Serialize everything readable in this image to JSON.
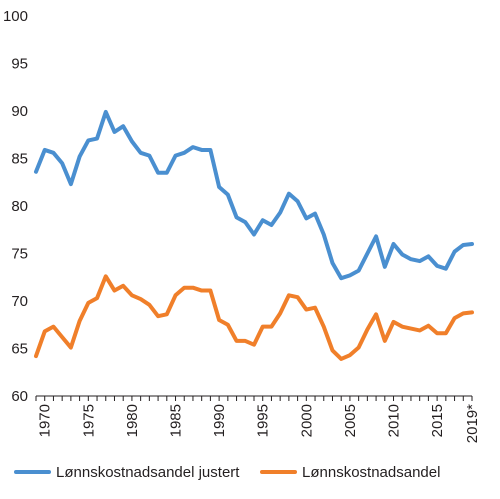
{
  "chart_data": {
    "type": "line",
    "title": "",
    "xlabel": "",
    "ylabel": "",
    "ylim": [
      60,
      100
    ],
    "yticks": [
      60,
      65,
      70,
      75,
      80,
      85,
      90,
      95,
      100
    ],
    "xticks": [
      {
        "x": 1970,
        "label": "1970"
      },
      {
        "x": 1975,
        "label": "1975"
      },
      {
        "x": 1980,
        "label": "1980"
      },
      {
        "x": 1985,
        "label": "1985"
      },
      {
        "x": 1990,
        "label": "1990"
      },
      {
        "x": 1995,
        "label": "1995"
      },
      {
        "x": 2000,
        "label": "2000"
      },
      {
        "x": 2005,
        "label": "2005"
      },
      {
        "x": 2010,
        "label": "2010"
      },
      {
        "x": 2015,
        "label": "2015"
      },
      {
        "x": 2019,
        "label": "2019*"
      }
    ],
    "x": [
      1969,
      1970,
      1971,
      1972,
      1973,
      1974,
      1975,
      1976,
      1977,
      1978,
      1979,
      1980,
      1981,
      1982,
      1983,
      1984,
      1985,
      1986,
      1987,
      1988,
      1989,
      1990,
      1991,
      1992,
      1993,
      1994,
      1995,
      1996,
      1997,
      1998,
      1999,
      2000,
      2001,
      2002,
      2003,
      2004,
      2005,
      2006,
      2007,
      2008,
      2009,
      2010,
      2011,
      2012,
      2013,
      2014,
      2015,
      2016,
      2017,
      2018,
      2019
    ],
    "series": [
      {
        "name": "Lønnskostnadsandel justert",
        "color": "#4a8fd0",
        "values": [
          83.6,
          85.9,
          85.6,
          84.5,
          82.3,
          85.2,
          86.9,
          87.1,
          89.9,
          87.8,
          88.4,
          86.8,
          85.6,
          85.3,
          83.5,
          83.5,
          85.3,
          85.6,
          86.2,
          85.9,
          85.9,
          82.0,
          81.2,
          78.8,
          78.3,
          77.0,
          78.5,
          78.0,
          79.3,
          81.3,
          80.5,
          78.7,
          79.2,
          77.0,
          74.0,
          72.4,
          72.7,
          73.2,
          75.0,
          76.8,
          73.6,
          76.0,
          74.9,
          74.4,
          74.2,
          74.7,
          73.7,
          73.4,
          75.2,
          75.9,
          76.0
        ]
      },
      {
        "name": "Lønnskostnadsandel",
        "color": "#f07f2a",
        "values": [
          64.2,
          66.8,
          67.3,
          66.2,
          65.1,
          67.9,
          69.8,
          70.3,
          72.6,
          71.1,
          71.6,
          70.6,
          70.2,
          69.6,
          68.4,
          68.6,
          70.6,
          71.4,
          71.4,
          71.1,
          71.1,
          68.0,
          67.5,
          65.8,
          65.8,
          65.4,
          67.3,
          67.3,
          68.7,
          70.6,
          70.4,
          69.1,
          69.3,
          67.3,
          64.8,
          63.9,
          64.3,
          65.1,
          67.0,
          68.6,
          65.8,
          67.8,
          67.3,
          67.1,
          66.9,
          67.4,
          66.6,
          66.6,
          68.2,
          68.7,
          68.8
        ]
      }
    ],
    "grid": false,
    "legend_position": "bottom"
  }
}
